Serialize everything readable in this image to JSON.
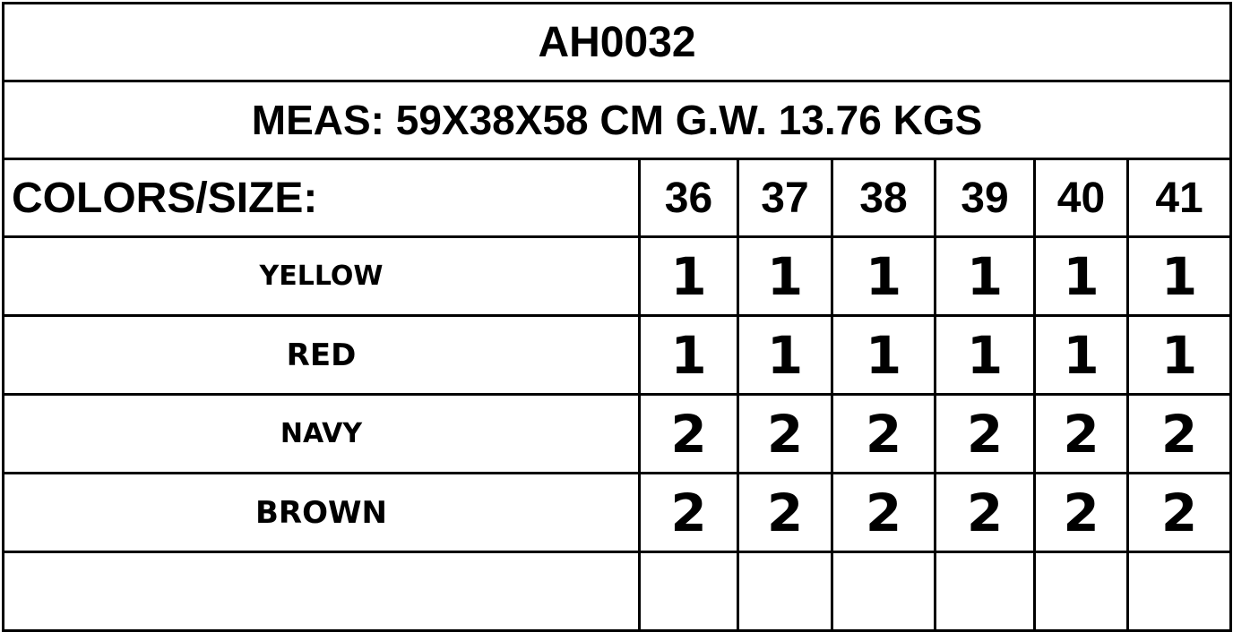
{
  "title": "AH0032",
  "meas": "MEAS: 59X38X58  CM  G.W. 13.76 KGS",
  "header": {
    "label": "COLORS/SIZE:",
    "sizes": [
      "36",
      "37",
      "38",
      "39",
      "40",
      "41"
    ]
  },
  "rows": [
    {
      "color": "YELLOW",
      "qty": [
        "1",
        "1",
        "1",
        "1",
        "1",
        "1"
      ]
    },
    {
      "color": "RED",
      "qty": [
        "1",
        "1",
        "1",
        "1",
        "1",
        "1"
      ]
    },
    {
      "color": "NAVY",
      "qty": [
        "2",
        "2",
        "2",
        "2",
        "2",
        "2"
      ]
    },
    {
      "color": "BROWN",
      "qty": [
        "2",
        "2",
        "2",
        "2",
        "2",
        "2"
      ]
    }
  ]
}
